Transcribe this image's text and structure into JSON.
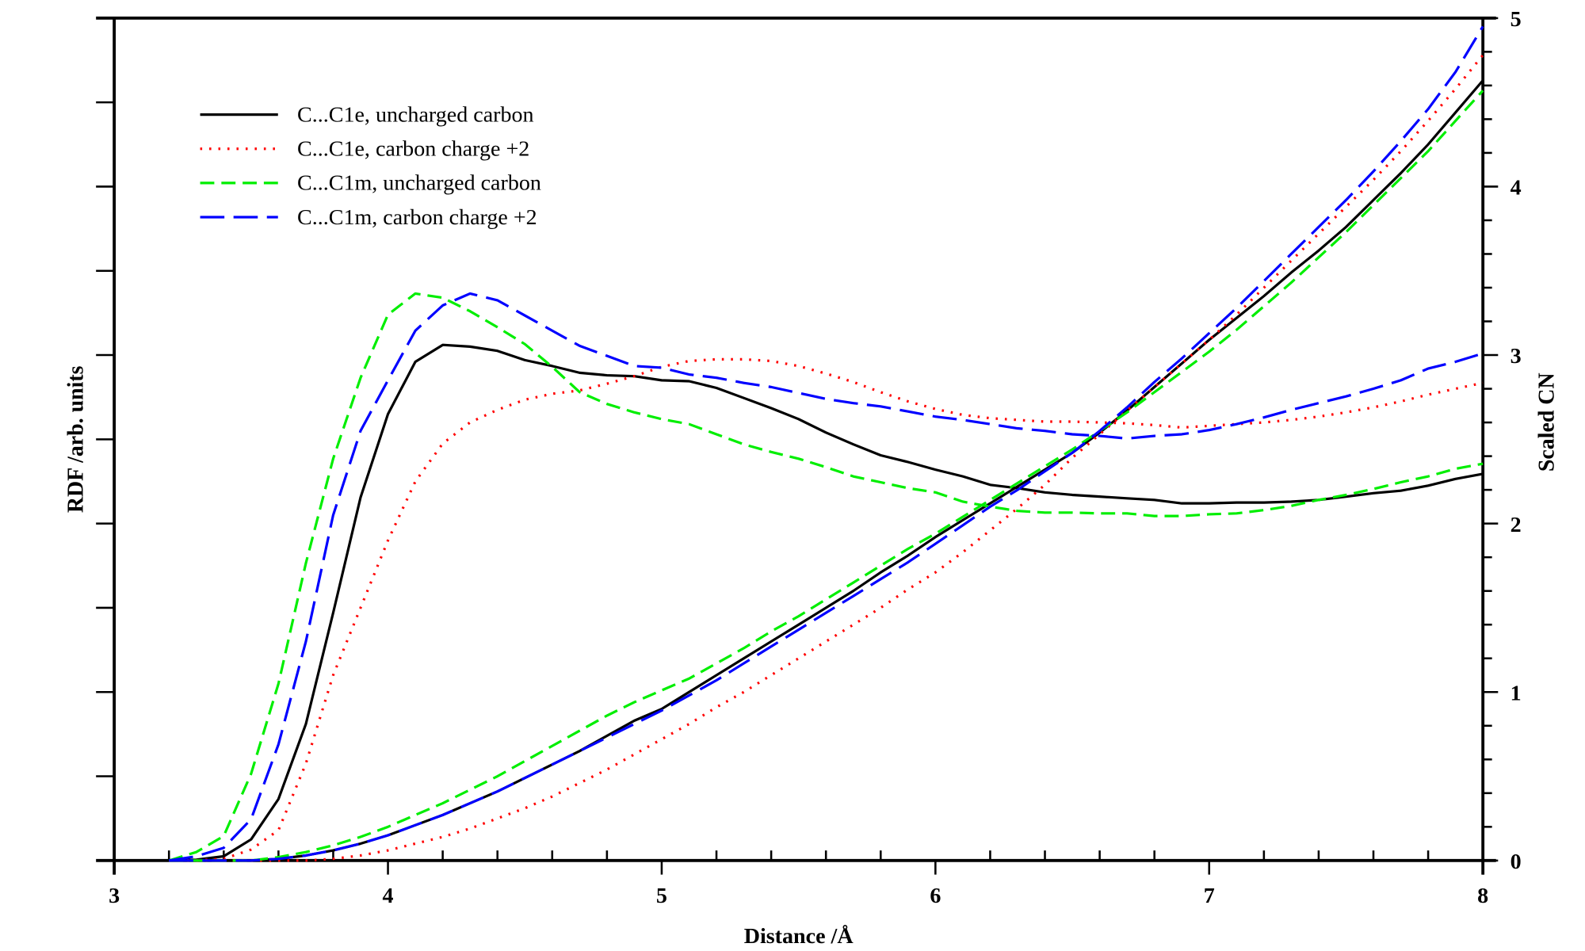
{
  "chart_data": {
    "type": "line",
    "title": "",
    "xlabel": "Distance /Å",
    "ylabel": "RDF /arb. units",
    "y2label": "Scaled CN",
    "xlim": [
      3,
      8
    ],
    "ylim": [
      0,
      10
    ],
    "y2lim": [
      0,
      5
    ],
    "xticks": [
      "3",
      "4",
      "5",
      "6",
      "7",
      "8"
    ],
    "y2ticks": [
      "0",
      "1",
      "2",
      "3",
      "4",
      "5"
    ],
    "grid": false,
    "legend_position": "top-left",
    "x": [
      3.2,
      3.3,
      3.4,
      3.5,
      3.6,
      3.7,
      3.8,
      3.9,
      4.0,
      4.1,
      4.2,
      4.3,
      4.4,
      4.5,
      4.6,
      4.7,
      4.8,
      4.9,
      5.0,
      5.1,
      5.2,
      5.3,
      5.4,
      5.5,
      5.6,
      5.7,
      5.8,
      5.9,
      6.0,
      6.1,
      6.2,
      6.3,
      6.4,
      6.5,
      6.6,
      6.7,
      6.8,
      6.9,
      7.0,
      7.1,
      7.2,
      7.3,
      7.4,
      7.5,
      7.6,
      7.7,
      7.8,
      7.9,
      8.0
    ],
    "series": [
      {
        "name": "C...C1e, uncharged carbon",
        "color": "#000000",
        "style": "solid",
        "rdf": [
          0,
          0.01,
          0.05,
          0.25,
          0.73,
          1.62,
          2.94,
          4.31,
          5.3,
          5.92,
          6.12,
          6.1,
          6.05,
          5.94,
          5.87,
          5.79,
          5.76,
          5.75,
          5.7,
          5.69,
          5.61,
          5.49,
          5.37,
          5.24,
          5.08,
          4.94,
          4.81,
          4.73,
          4.64,
          4.56,
          4.46,
          4.42,
          4.37,
          4.34,
          4.32,
          4.3,
          4.28,
          4.24,
          4.24,
          4.25,
          4.25,
          4.26,
          4.28,
          4.32,
          4.36,
          4.39,
          4.45,
          4.53,
          4.59
        ],
        "cn": [
          0,
          0,
          0,
          0,
          0.01,
          0.03,
          0.06,
          0.1,
          0.15,
          0.21,
          0.27,
          0.34,
          0.41,
          0.49,
          0.57,
          0.65,
          0.74,
          0.83,
          0.9,
          1.0,
          1.1,
          1.2,
          1.3,
          1.4,
          1.5,
          1.6,
          1.71,
          1.81,
          1.92,
          2.02,
          2.12,
          2.22,
          2.32,
          2.42,
          2.54,
          2.67,
          2.81,
          2.95,
          3.09,
          3.22,
          3.35,
          3.49,
          3.62,
          3.76,
          3.92,
          4.08,
          4.25,
          4.44,
          4.63
        ]
      },
      {
        "name": "C...C1e, carbon charge +2",
        "color": "#ff0000",
        "style": "dotted",
        "rdf": [
          0,
          0,
          0.02,
          0.13,
          0.36,
          1.15,
          2.2,
          3.0,
          3.8,
          4.5,
          4.95,
          5.2,
          5.35,
          5.47,
          5.54,
          5.58,
          5.66,
          5.75,
          5.86,
          5.93,
          5.95,
          5.95,
          5.93,
          5.87,
          5.78,
          5.68,
          5.56,
          5.45,
          5.36,
          5.29,
          5.25,
          5.23,
          5.21,
          5.21,
          5.2,
          5.19,
          5.17,
          5.14,
          5.16,
          5.18,
          5.2,
          5.23,
          5.27,
          5.32,
          5.38,
          5.45,
          5.53,
          5.6,
          5.67
        ],
        "cn": [
          0,
          0,
          0,
          0,
          0,
          0,
          0.01,
          0.03,
          0.06,
          0.1,
          0.14,
          0.19,
          0.25,
          0.31,
          0.38,
          0.46,
          0.54,
          0.63,
          0.72,
          0.81,
          0.91,
          1.0,
          1.1,
          1.2,
          1.3,
          1.4,
          1.5,
          1.61,
          1.71,
          1.83,
          1.96,
          2.09,
          2.23,
          2.39,
          2.53,
          2.67,
          2.81,
          2.95,
          3.09,
          3.24,
          3.4,
          3.56,
          3.72,
          3.88,
          4.04,
          4.21,
          4.39,
          4.58,
          4.78
        ]
      },
      {
        "name": "C...C1m, uncharged carbon",
        "color": "#00ee00",
        "style": "dashed",
        "rdf": [
          0,
          0.1,
          0.29,
          1.03,
          2.1,
          3.53,
          4.77,
          5.73,
          6.48,
          6.73,
          6.68,
          6.52,
          6.33,
          6.13,
          5.86,
          5.56,
          5.42,
          5.32,
          5.24,
          5.18,
          5.06,
          4.94,
          4.85,
          4.77,
          4.67,
          4.56,
          4.49,
          4.42,
          4.37,
          4.26,
          4.2,
          4.15,
          4.13,
          4.13,
          4.12,
          4.12,
          4.09,
          4.09,
          4.11,
          4.12,
          4.16,
          4.21,
          4.28,
          4.34,
          4.41,
          4.49,
          4.56,
          4.65,
          4.71
        ],
        "cn": [
          0,
          0,
          0,
          0,
          0.02,
          0.05,
          0.09,
          0.14,
          0.2,
          0.27,
          0.34,
          0.42,
          0.5,
          0.59,
          0.68,
          0.77,
          0.86,
          0.94,
          1.01,
          1.08,
          1.17,
          1.26,
          1.36,
          1.45,
          1.55,
          1.65,
          1.75,
          1.85,
          1.94,
          2.04,
          2.14,
          2.24,
          2.34,
          2.44,
          2.55,
          2.66,
          2.78,
          2.9,
          3.02,
          3.15,
          3.29,
          3.43,
          3.58,
          3.73,
          3.89,
          4.05,
          4.21,
          4.39,
          4.57
        ]
      },
      {
        "name": "C...C1m, carbon charge +2",
        "color": "#0000ff",
        "style": "long-dashed",
        "rdf": [
          0,
          0.05,
          0.15,
          0.49,
          1.38,
          2.6,
          4.1,
          5.1,
          5.7,
          6.29,
          6.59,
          6.73,
          6.65,
          6.47,
          6.29,
          6.11,
          5.99,
          5.87,
          5.85,
          5.77,
          5.73,
          5.67,
          5.62,
          5.55,
          5.48,
          5.43,
          5.39,
          5.33,
          5.27,
          5.23,
          5.18,
          5.13,
          5.1,
          5.06,
          5.04,
          5.01,
          5.04,
          5.06,
          5.11,
          5.18,
          5.26,
          5.35,
          5.43,
          5.51,
          5.6,
          5.7,
          5.84,
          5.92,
          6.02
        ],
        "cn": [
          0,
          0,
          0,
          0,
          0.01,
          0.03,
          0.06,
          0.1,
          0.15,
          0.21,
          0.27,
          0.34,
          0.41,
          0.49,
          0.57,
          0.65,
          0.73,
          0.81,
          0.89,
          0.98,
          1.07,
          1.17,
          1.27,
          1.37,
          1.47,
          1.57,
          1.67,
          1.77,
          1.88,
          1.99,
          2.1,
          2.2,
          2.31,
          2.42,
          2.55,
          2.69,
          2.84,
          2.98,
          3.13,
          3.28,
          3.44,
          3.6,
          3.76,
          3.92,
          4.09,
          4.27,
          4.46,
          4.68,
          4.95
        ]
      }
    ]
  }
}
